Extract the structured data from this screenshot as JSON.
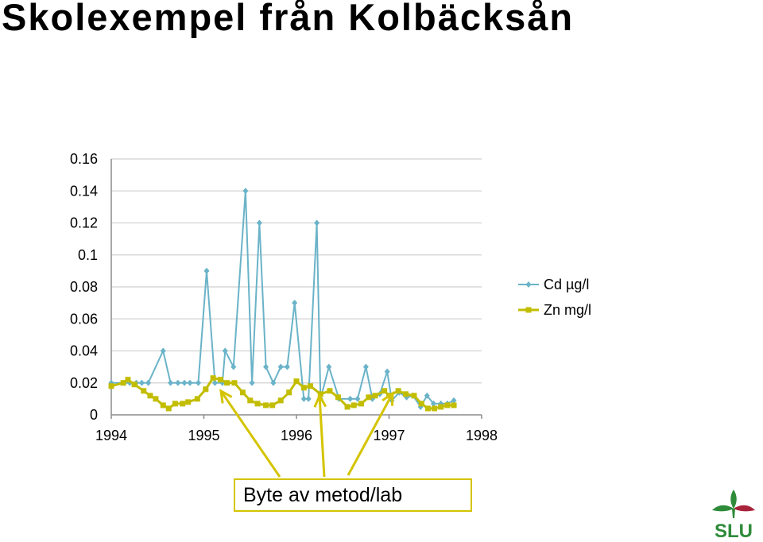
{
  "title": "Skolexempel från Kolbäcksån",
  "colors": {
    "cd": "#6ab3c8",
    "zn": "#c2bd00",
    "grid": "#d9d9d9",
    "callout": "#d4c400",
    "logo_green": "#2e8b3a",
    "logo_red": "#a8233a"
  },
  "callout": "Byte av metod/lab",
  "logo": {
    "text": "SLU"
  },
  "chart_data": {
    "type": "line",
    "xlabel": "",
    "ylabel": "",
    "xlim": [
      1994,
      1998
    ],
    "ylim": [
      0,
      0.16
    ],
    "x_ticks": [
      "1994",
      "1995",
      "1996",
      "1997",
      "1998"
    ],
    "y_ticks": [
      "0",
      "0.02",
      "0.04",
      "0.06",
      "0.08",
      "0.1",
      "0.12",
      "0.14",
      "0.16"
    ],
    "grid": true,
    "legend_position": "right",
    "series": [
      {
        "name": "Cd µg/l",
        "marker": "diamond",
        "points": [
          [
            1994.0,
            0.02
          ],
          [
            1994.14,
            0.02
          ],
          [
            1994.2,
            0.02
          ],
          [
            1994.27,
            0.02
          ],
          [
            1994.33,
            0.02
          ],
          [
            1994.4,
            0.02
          ],
          [
            1994.56,
            0.04
          ],
          [
            1994.64,
            0.02
          ],
          [
            1994.72,
            0.02
          ],
          [
            1994.79,
            0.02
          ],
          [
            1994.85,
            0.02
          ],
          [
            1994.94,
            0.02
          ],
          [
            1995.03,
            0.09
          ],
          [
            1995.12,
            0.02
          ],
          [
            1995.2,
            0.02
          ],
          [
            1995.23,
            0.04
          ],
          [
            1995.32,
            0.03
          ],
          [
            1995.45,
            0.14
          ],
          [
            1995.52,
            0.02
          ],
          [
            1995.6,
            0.12
          ],
          [
            1995.67,
            0.03
          ],
          [
            1995.75,
            0.02
          ],
          [
            1995.83,
            0.03
          ],
          [
            1995.9,
            0.03
          ],
          [
            1995.98,
            0.07
          ],
          [
            1996.08,
            0.01
          ],
          [
            1996.13,
            0.01
          ],
          [
            1996.22,
            0.12
          ],
          [
            1996.26,
            0.01
          ],
          [
            1996.35,
            0.03
          ],
          [
            1996.46,
            0.01
          ],
          [
            1996.58,
            0.01
          ],
          [
            1996.66,
            0.01
          ],
          [
            1996.75,
            0.03
          ],
          [
            1996.82,
            0.01
          ],
          [
            1996.9,
            0.013
          ],
          [
            1996.98,
            0.027
          ],
          [
            1997.03,
            0.009
          ],
          [
            1997.11,
            0.014
          ],
          [
            1997.19,
            0.011
          ],
          [
            1997.26,
            0.012
          ],
          [
            1997.34,
            0.005
          ],
          [
            1997.41,
            0.012
          ],
          [
            1997.48,
            0.007
          ],
          [
            1997.56,
            0.007
          ],
          [
            1997.63,
            0.007
          ],
          [
            1997.7,
            0.009
          ]
        ]
      },
      {
        "name": "Zn mg/l",
        "marker": "square",
        "points": [
          [
            1994.0,
            0.018
          ],
          [
            1994.13,
            0.02
          ],
          [
            1994.18,
            0.022
          ],
          [
            1994.25,
            0.019
          ],
          [
            1994.35,
            0.015
          ],
          [
            1994.42,
            0.012
          ],
          [
            1994.48,
            0.01
          ],
          [
            1994.56,
            0.006
          ],
          [
            1994.62,
            0.004
          ],
          [
            1994.69,
            0.007
          ],
          [
            1994.77,
            0.007
          ],
          [
            1994.83,
            0.008
          ],
          [
            1994.93,
            0.01
          ],
          [
            1995.02,
            0.016
          ],
          [
            1995.1,
            0.023
          ],
          [
            1995.18,
            0.022
          ],
          [
            1995.25,
            0.02
          ],
          [
            1995.33,
            0.02
          ],
          [
            1995.42,
            0.014
          ],
          [
            1995.5,
            0.009
          ],
          [
            1995.58,
            0.007
          ],
          [
            1995.67,
            0.006
          ],
          [
            1995.74,
            0.006
          ],
          [
            1995.83,
            0.009
          ],
          [
            1995.92,
            0.014
          ],
          [
            1996.0,
            0.021
          ],
          [
            1996.08,
            0.017
          ],
          [
            1996.15,
            0.018
          ],
          [
            1996.26,
            0.013
          ],
          [
            1996.36,
            0.015
          ],
          [
            1996.45,
            0.011
          ],
          [
            1996.55,
            0.005
          ],
          [
            1996.62,
            0.006
          ],
          [
            1996.7,
            0.007
          ],
          [
            1996.78,
            0.011
          ],
          [
            1996.85,
            0.012
          ],
          [
            1996.95,
            0.015
          ],
          [
            1997.0,
            0.012
          ],
          [
            1997.1,
            0.015
          ],
          [
            1997.18,
            0.013
          ],
          [
            1997.27,
            0.012
          ],
          [
            1997.35,
            0.007
          ],
          [
            1997.42,
            0.004
          ],
          [
            1997.49,
            0.004
          ],
          [
            1997.56,
            0.005
          ],
          [
            1997.63,
            0.006
          ],
          [
            1997.7,
            0.006
          ]
        ]
      }
    ]
  }
}
